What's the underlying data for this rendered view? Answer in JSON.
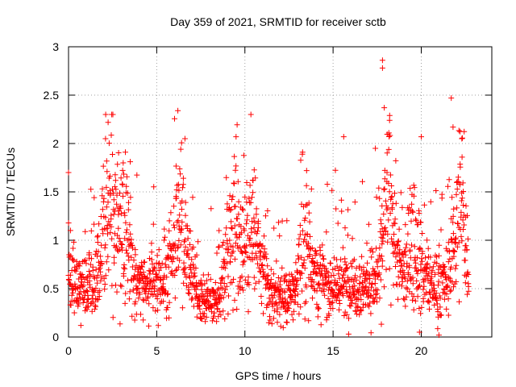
{
  "chart_data": {
    "type": "scatter",
    "title": "Day 359 of 2021, SRMTID for receiver sctb",
    "xlabel": "GPS time / hours",
    "ylabel": "SRMTID / TECUs",
    "xlim": [
      0,
      24
    ],
    "ylim": [
      0,
      3
    ],
    "x_ticks": [
      0,
      5,
      10,
      15,
      20
    ],
    "y_ticks": [
      0,
      0.5,
      1,
      1.5,
      2,
      2.5,
      3
    ],
    "x_tick_labels": [
      "0",
      "5",
      "10",
      "15",
      "20"
    ],
    "y_tick_labels": [
      "0",
      "0.5",
      "1",
      "1.5",
      "2",
      "2.5",
      "3"
    ],
    "grid": true,
    "marker": "+",
    "color": "#ff0000",
    "x_range": [
      0,
      22.7
    ],
    "point_count": 1900,
    "representative_points": [
      {
        "x": 0.0,
        "y": 1.7
      },
      {
        "x": 2.1,
        "y": 2.05
      },
      {
        "x": 3.1,
        "y": 1.8
      },
      {
        "x": 6.2,
        "y": 2.34
      },
      {
        "x": 6.6,
        "y": 2.05
      },
      {
        "x": 9.5,
        "y": 2.07
      },
      {
        "x": 13.5,
        "y": 1.72
      },
      {
        "x": 15.6,
        "y": 2.07
      },
      {
        "x": 17.8,
        "y": 2.86
      },
      {
        "x": 17.8,
        "y": 2.78
      },
      {
        "x": 17.9,
        "y": 2.37
      },
      {
        "x": 17.4,
        "y": 1.95
      },
      {
        "x": 20.0,
        "y": 2.07
      },
      {
        "x": 21.7,
        "y": 2.47
      },
      {
        "x": 21.8,
        "y": 2.17
      },
      {
        "x": 22.3,
        "y": 2.05
      },
      {
        "x": 0.7,
        "y": 0.12
      },
      {
        "x": 19.9,
        "y": 0.05
      },
      {
        "x": 21.0,
        "y": 0.02
      }
    ],
    "activity_bursts": [
      {
        "center_hour": 2.3,
        "level": 1.4
      },
      {
        "center_hour": 3.2,
        "level": 1.15
      },
      {
        "center_hour": 6.3,
        "level": 1.3
      },
      {
        "center_hour": 9.4,
        "level": 1.15
      },
      {
        "center_hour": 10.4,
        "level": 1.15
      },
      {
        "center_hour": 13.5,
        "level": 1.0
      },
      {
        "center_hour": 18.2,
        "level": 1.4
      },
      {
        "center_hour": 19.6,
        "level": 1.0
      },
      {
        "center_hour": 22.2,
        "level": 1.35
      }
    ]
  }
}
